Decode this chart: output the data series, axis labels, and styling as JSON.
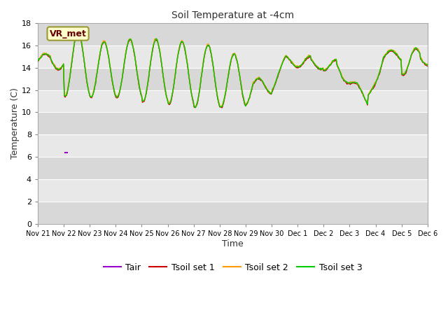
{
  "title": "Soil Temperature at -4cm",
  "xlabel": "Time",
  "ylabel": "Temperature (C)",
  "ylim": [
    0,
    18
  ],
  "yticks": [
    0,
    2,
    4,
    6,
    8,
    10,
    12,
    14,
    16,
    18
  ],
  "fig_bg_color": "#ffffff",
  "plot_bg_color": "#e8e8e8",
  "band_light_color": "#f0f0f0",
  "band_dark_color": "#e0e0e0",
  "legend_label": "VR_met",
  "series_colors": {
    "Tair": "#9900cc",
    "Tsoil_set1": "#cc0000",
    "Tsoil_set2": "#ff9900",
    "Tsoil_set3": "#00cc00"
  },
  "x_tick_labels": [
    "Nov 21",
    "Nov 22",
    "Nov 23",
    "Nov 24",
    "Nov 25",
    "Nov 26",
    "Nov 27",
    "Nov 28",
    "Nov 29",
    "Nov 30",
    "Dec 1",
    "Dec 2",
    "Dec 3",
    "Dec 4",
    "Dec 5",
    "Dec 6"
  ],
  "n_points": 500
}
